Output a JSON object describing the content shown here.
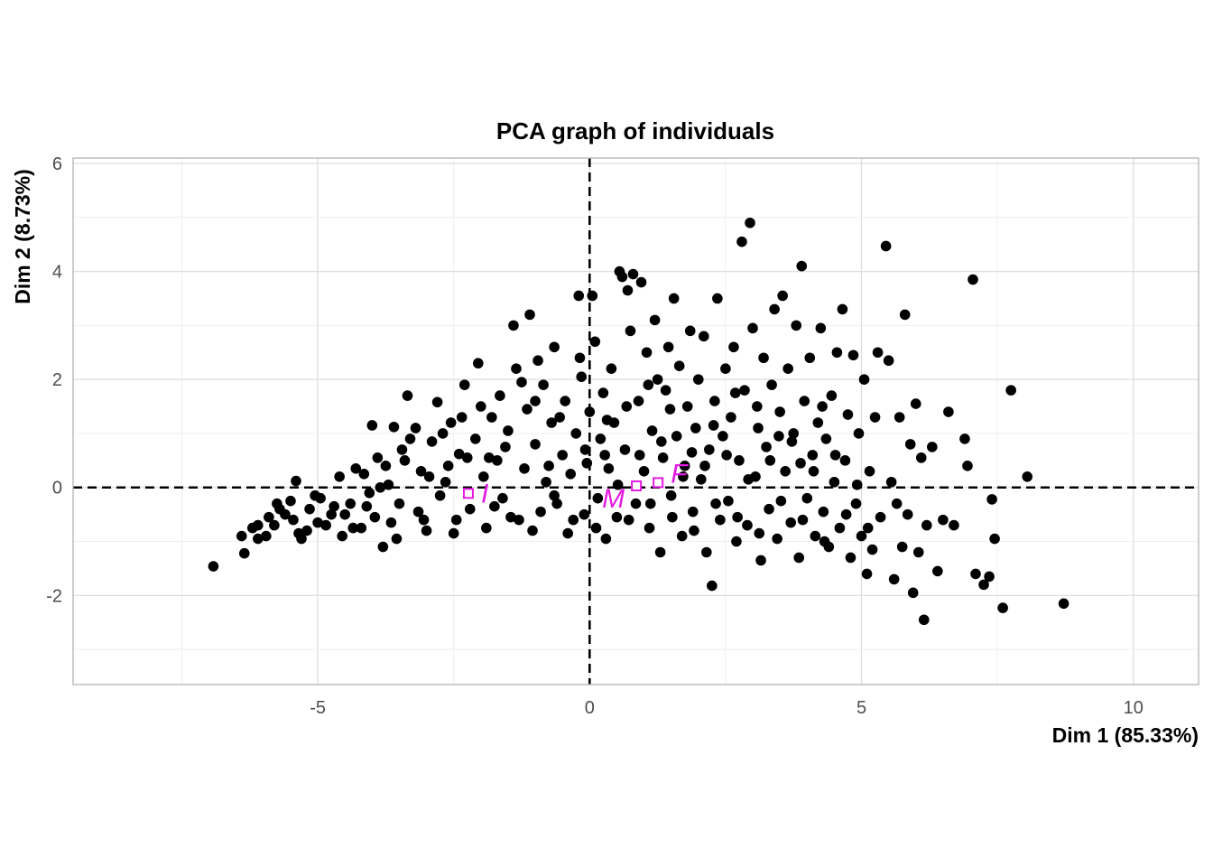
{
  "chart_data": {
    "type": "scatter",
    "title": "PCA graph of individuals",
    "xlabel": "Dim 1 (85.33%)",
    "ylabel": "Dim 2 (8.73%)",
    "xlim": [
      -9.5,
      11.2
    ],
    "ylim": [
      -3.65,
      6.1
    ],
    "x_ticks": [
      -5,
      0,
      5,
      10
    ],
    "x_tick_labels": [
      "-5",
      "0",
      "5",
      "10"
    ],
    "y_ticks": [
      -2,
      0,
      2,
      4,
      6
    ],
    "y_tick_labels": [
      "-2",
      "0",
      "2",
      "4",
      "6"
    ],
    "grid": true,
    "reference_lines": {
      "x": 0,
      "y": 0,
      "style": "dashed"
    },
    "point_color": "#000000",
    "group_color": "#e31ae3",
    "group_centroids": [
      {
        "label": "I",
        "x": -2.23,
        "y": -0.11
      },
      {
        "label": "M",
        "x": 0.86,
        "y": 0.03
      },
      {
        "label": "F",
        "x": 1.26,
        "y": 0.09
      }
    ],
    "individuals": [
      [
        -6.92,
        -1.46
      ],
      [
        -6.35,
        -1.22
      ],
      [
        -6.4,
        -0.9
      ],
      [
        -6.1,
        -0.7
      ],
      [
        -5.9,
        -0.55
      ],
      [
        -5.7,
        -0.4
      ],
      [
        -5.5,
        -0.25
      ],
      [
        -5.4,
        0.12
      ],
      [
        -5.3,
        -0.95
      ],
      [
        -5.2,
        -0.8
      ],
      [
        -5.0,
        -0.65
      ],
      [
        -4.95,
        -0.2
      ],
      [
        -4.7,
        -0.35
      ],
      [
        -4.6,
        0.2
      ],
      [
        -4.5,
        -0.5
      ],
      [
        -4.3,
        0.35
      ],
      [
        -4.2,
        -0.75
      ],
      [
        -4.05,
        -0.1
      ],
      [
        -4.0,
        1.15
      ],
      [
        -3.9,
        0.55
      ],
      [
        -3.8,
        -1.1
      ],
      [
        -3.7,
        0.05
      ],
      [
        -3.6,
        1.12
      ],
      [
        -3.5,
        -0.3
      ],
      [
        -3.45,
        0.7
      ],
      [
        -3.35,
        1.7
      ],
      [
        -3.2,
        1.1
      ],
      [
        -3.1,
        0.3
      ],
      [
        -3.05,
        -0.6
      ],
      [
        -2.9,
        0.85
      ],
      [
        -2.8,
        1.58
      ],
      [
        -2.75,
        -0.15
      ],
      [
        -2.6,
        0.4
      ],
      [
        -2.55,
        1.2
      ],
      [
        -2.5,
        -0.85
      ],
      [
        -2.4,
        0.62
      ],
      [
        -2.3,
        1.9
      ],
      [
        -2.2,
        -0.4
      ],
      [
        -2.1,
        0.9
      ],
      [
        -2.05,
        2.3
      ],
      [
        -1.95,
        0.2
      ],
      [
        -1.9,
        -0.75
      ],
      [
        -1.8,
        1.3
      ],
      [
        -1.7,
        0.5
      ],
      [
        -1.65,
        1.7
      ],
      [
        -1.6,
        -0.2
      ],
      [
        -1.5,
        1.05
      ],
      [
        -1.4,
        3.0
      ],
      [
        -1.35,
        2.2
      ],
      [
        -1.3,
        -0.6
      ],
      [
        -1.2,
        0.35
      ],
      [
        -1.15,
        1.45
      ],
      [
        -1.1,
        3.2
      ],
      [
        -1.0,
        0.8
      ],
      [
        -0.95,
        2.35
      ],
      [
        -0.9,
        -0.45
      ],
      [
        -0.85,
        1.9
      ],
      [
        -0.8,
        0.1
      ],
      [
        -0.7,
        1.2
      ],
      [
        -0.65,
        2.6
      ],
      [
        -0.6,
        -0.3
      ],
      [
        -0.5,
        0.6
      ],
      [
        -0.45,
        1.6
      ],
      [
        -0.4,
        -0.85
      ],
      [
        -0.35,
        0.25
      ],
      [
        -0.25,
        1.0
      ],
      [
        -0.2,
        3.55
      ],
      [
        -0.15,
        2.05
      ],
      [
        -0.1,
        -0.5
      ],
      [
        -0.05,
        0.45
      ],
      [
        0.0,
        1.4
      ],
      [
        0.05,
        3.55
      ],
      [
        0.1,
        2.7
      ],
      [
        0.15,
        -0.2
      ],
      [
        0.2,
        0.9
      ],
      [
        0.25,
        1.75
      ],
      [
        0.3,
        -0.95
      ],
      [
        0.35,
        0.35
      ],
      [
        0.4,
        2.2
      ],
      [
        0.45,
        1.2
      ],
      [
        0.5,
        -0.55
      ],
      [
        0.55,
        4.0
      ],
      [
        0.6,
        3.9
      ],
      [
        0.65,
        0.7
      ],
      [
        0.7,
        3.65
      ],
      [
        0.75,
        2.9
      ],
      [
        0.8,
        3.95
      ],
      [
        0.85,
        -0.3
      ],
      [
        0.9,
        1.6
      ],
      [
        0.95,
        3.8
      ],
      [
        1.0,
        0.3
      ],
      [
        1.05,
        2.5
      ],
      [
        1.1,
        -0.75
      ],
      [
        1.15,
        1.05
      ],
      [
        1.2,
        3.1
      ],
      [
        1.25,
        2.0
      ],
      [
        1.3,
        -1.2
      ],
      [
        1.35,
        0.55
      ],
      [
        1.4,
        1.8
      ],
      [
        1.45,
        2.6
      ],
      [
        1.5,
        -0.15
      ],
      [
        1.55,
        3.5
      ],
      [
        1.6,
        0.95
      ],
      [
        1.65,
        2.25
      ],
      [
        1.7,
        -0.9
      ],
      [
        1.75,
        0.4
      ],
      [
        1.8,
        1.5
      ],
      [
        1.85,
        2.9
      ],
      [
        1.9,
        -0.45
      ],
      [
        1.95,
        1.1
      ],
      [
        2.0,
        2.0
      ],
      [
        2.05,
        0.15
      ],
      [
        2.1,
        2.8
      ],
      [
        2.15,
        -1.2
      ],
      [
        2.2,
        0.7
      ],
      [
        2.25,
        -1.82
      ],
      [
        2.3,
        1.6
      ],
      [
        2.35,
        3.5
      ],
      [
        2.4,
        -0.6
      ],
      [
        2.45,
        0.95
      ],
      [
        2.5,
        2.2
      ],
      [
        2.55,
        -0.25
      ],
      [
        2.6,
        1.3
      ],
      [
        2.65,
        2.6
      ],
      [
        2.7,
        -1.0
      ],
      [
        2.75,
        0.5
      ],
      [
        2.8,
        4.55
      ],
      [
        2.85,
        1.8
      ],
      [
        2.9,
        -0.7
      ],
      [
        2.95,
        4.9
      ],
      [
        3.0,
        2.95
      ],
      [
        3.05,
        0.2
      ],
      [
        3.1,
        1.1
      ],
      [
        3.15,
        -1.35
      ],
      [
        3.2,
        2.4
      ],
      [
        3.25,
        0.75
      ],
      [
        3.3,
        -0.4
      ],
      [
        3.35,
        1.9
      ],
      [
        3.4,
        3.3
      ],
      [
        3.45,
        -0.95
      ],
      [
        3.5,
        1.4
      ],
      [
        3.55,
        3.55
      ],
      [
        3.6,
        0.3
      ],
      [
        3.65,
        2.2
      ],
      [
        3.7,
        -0.65
      ],
      [
        3.75,
        1.0
      ],
      [
        3.8,
        3.0
      ],
      [
        3.85,
        -1.3
      ],
      [
        3.9,
        4.1
      ],
      [
        3.95,
        1.6
      ],
      [
        4.0,
        -0.2
      ],
      [
        4.05,
        2.4
      ],
      [
        4.1,
        0.6
      ],
      [
        4.15,
        -0.9
      ],
      [
        4.2,
        1.2
      ],
      [
        4.25,
        2.95
      ],
      [
        4.3,
        -0.45
      ],
      [
        4.35,
        0.9
      ],
      [
        4.4,
        -1.1
      ],
      [
        4.45,
        1.7
      ],
      [
        4.5,
        0.1
      ],
      [
        4.55,
        2.5
      ],
      [
        4.6,
        -0.75
      ],
      [
        4.65,
        3.3
      ],
      [
        4.7,
        0.5
      ],
      [
        4.75,
        1.35
      ],
      [
        4.8,
        -1.3
      ],
      [
        4.85,
        2.45
      ],
      [
        4.9,
        -0.3
      ],
      [
        4.95,
        1.0
      ],
      [
        5.0,
        -0.9
      ],
      [
        5.05,
        2.0
      ],
      [
        5.1,
        -1.6
      ],
      [
        5.15,
        0.3
      ],
      [
        5.2,
        -1.15
      ],
      [
        5.25,
        1.3
      ],
      [
        5.3,
        2.5
      ],
      [
        5.35,
        -0.55
      ],
      [
        5.45,
        4.47
      ],
      [
        5.5,
        2.35
      ],
      [
        5.55,
        0.1
      ],
      [
        5.6,
        -1.7
      ],
      [
        5.65,
        -0.3
      ],
      [
        5.7,
        1.3
      ],
      [
        5.75,
        -1.1
      ],
      [
        5.8,
        3.2
      ],
      [
        5.85,
        -0.5
      ],
      [
        5.9,
        0.8
      ],
      [
        5.95,
        -1.95
      ],
      [
        6.0,
        1.55
      ],
      [
        6.05,
        -1.2
      ],
      [
        6.1,
        0.55
      ],
      [
        6.15,
        -2.45
      ],
      [
        6.2,
        -0.7
      ],
      [
        6.3,
        0.75
      ],
      [
        6.4,
        -1.55
      ],
      [
        6.5,
        -0.6
      ],
      [
        6.6,
        1.4
      ],
      [
        6.7,
        -0.7
      ],
      [
        6.9,
        0.9
      ],
      [
        6.95,
        0.4
      ],
      [
        7.05,
        3.85
      ],
      [
        7.1,
        -1.6
      ],
      [
        7.25,
        -1.8
      ],
      [
        7.35,
        -1.65
      ],
      [
        7.4,
        -0.22
      ],
      [
        7.45,
        -0.95
      ],
      [
        7.6,
        -2.23
      ],
      [
        7.75,
        1.8
      ],
      [
        8.05,
        0.2
      ],
      [
        8.72,
        -2.15
      ],
      [
        -6.1,
        -0.95
      ],
      [
        -5.8,
        -0.7
      ],
      [
        -5.6,
        -0.5
      ],
      [
        -5.35,
        -0.85
      ],
      [
        -5.15,
        -0.4
      ],
      [
        -4.85,
        -0.7
      ],
      [
        -4.55,
        -0.9
      ],
      [
        -4.4,
        -0.3
      ],
      [
        -4.15,
        0.25
      ],
      [
        -3.95,
        -0.55
      ],
      [
        -3.75,
        0.4
      ],
      [
        -3.55,
        -0.95
      ],
      [
        -3.3,
        0.9
      ],
      [
        -3.15,
        -0.45
      ],
      [
        -2.95,
        0.2
      ],
      [
        -2.7,
        1.0
      ],
      [
        -2.45,
        -0.6
      ],
      [
        -2.25,
        0.55
      ],
      [
        -2.0,
        1.5
      ],
      [
        -1.75,
        -0.35
      ],
      [
        -1.55,
        0.75
      ],
      [
        -1.25,
        1.95
      ],
      [
        -1.05,
        -0.8
      ],
      [
        -0.75,
        0.4
      ],
      [
        -0.55,
        1.3
      ],
      [
        -0.3,
        -0.6
      ],
      [
        -0.08,
        0.7
      ],
      [
        0.12,
        -0.75
      ],
      [
        0.32,
        1.25
      ],
      [
        0.52,
        0.05
      ],
      [
        0.72,
        -0.6
      ],
      [
        0.92,
        0.6
      ],
      [
        1.12,
        -0.3
      ],
      [
        1.32,
        0.85
      ],
      [
        1.52,
        -0.55
      ],
      [
        1.72,
        0.2
      ],
      [
        1.92,
        -0.8
      ],
      [
        2.12,
        0.4
      ],
      [
        2.32,
        -0.3
      ],
      [
        2.52,
        0.6
      ],
      [
        2.72,
        -0.55
      ],
      [
        2.92,
        0.15
      ],
      [
        3.12,
        -0.85
      ],
      [
        3.32,
        0.5
      ],
      [
        3.52,
        -0.25
      ],
      [
        3.72,
        0.85
      ],
      [
        3.92,
        -0.6
      ],
      [
        4.12,
        0.3
      ],
      [
        4.32,
        -1.0
      ],
      [
        4.52,
        0.6
      ],
      [
        4.72,
        -0.5
      ],
      [
        4.92,
        0.05
      ],
      [
        5.12,
        -0.75
      ],
      [
        -6.2,
        -0.75
      ],
      [
        -5.95,
        -0.9
      ],
      [
        -5.75,
        -0.3
      ],
      [
        -5.45,
        -0.6
      ],
      [
        -5.05,
        -0.15
      ],
      [
        -4.75,
        -0.5
      ],
      [
        -4.35,
        -0.75
      ],
      [
        -4.1,
        -0.35
      ],
      [
        -3.85,
        0.0
      ],
      [
        -3.65,
        -0.65
      ],
      [
        -3.4,
        0.5
      ],
      [
        -3.0,
        -0.8
      ],
      [
        -2.65,
        0.1
      ],
      [
        -2.35,
        1.3
      ],
      [
        -1.85,
        0.55
      ],
      [
        -1.45,
        -0.55
      ],
      [
        -1.0,
        1.6
      ],
      [
        -0.65,
        -0.15
      ],
      [
        -0.18,
        2.4
      ],
      [
        0.28,
        0.6
      ],
      [
        0.68,
        1.5
      ],
      [
        1.08,
        1.9
      ],
      [
        1.48,
        1.45
      ],
      [
        1.88,
        0.65
      ],
      [
        2.28,
        1.15
      ],
      [
        2.68,
        1.75
      ],
      [
        3.08,
        1.5
      ],
      [
        3.48,
        0.95
      ],
      [
        3.88,
        0.45
      ],
      [
        4.28,
        1.5
      ]
    ]
  }
}
